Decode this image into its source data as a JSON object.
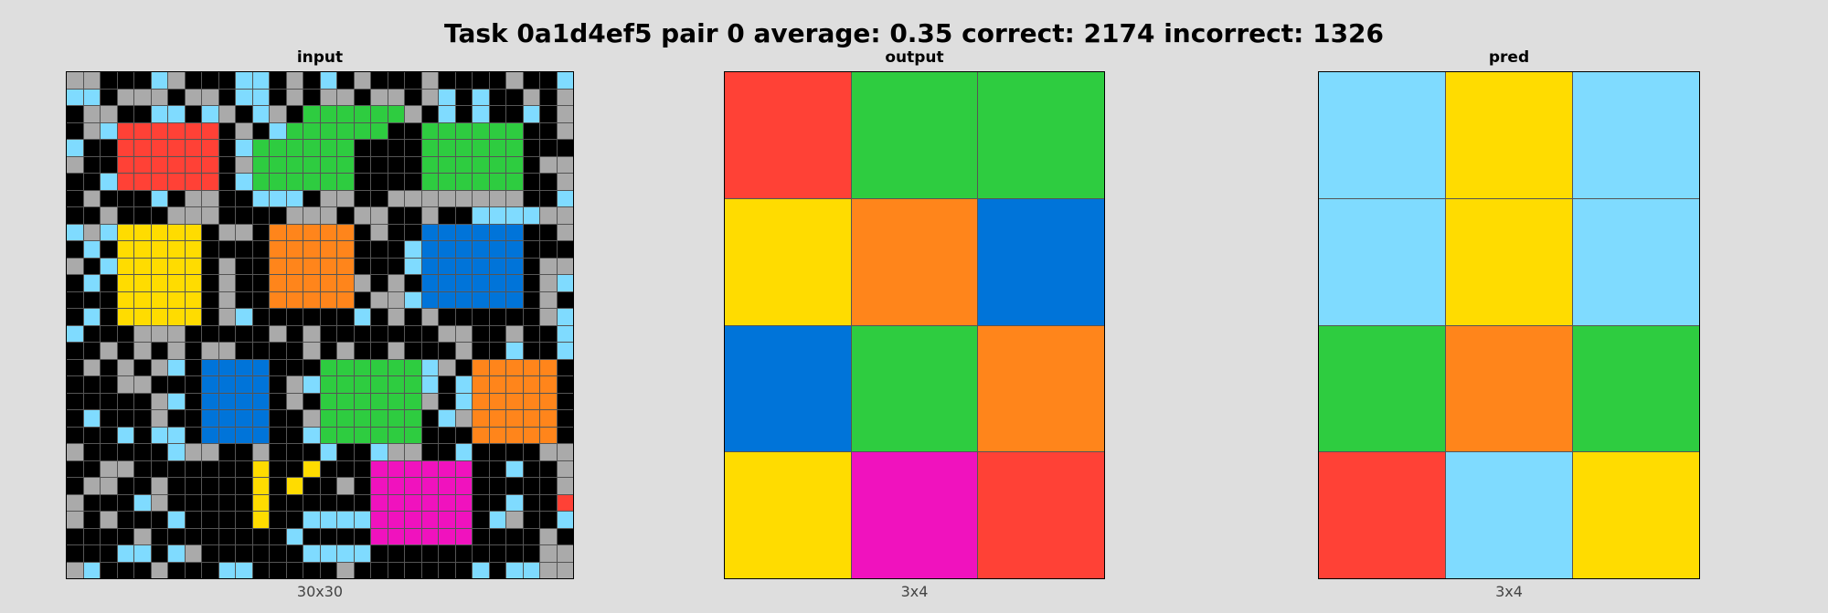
{
  "title": "Task 0a1d4ef5 pair 0 average: 0.35 correct: 2174 incorrect: 1326",
  "palette": {
    "0": "#000000",
    "1": "#0074d9",
    "2": "#ff4136",
    "3": "#2ecc40",
    "4": "#ffdc00",
    "5": "#aaaaaa",
    "6": "#f012be",
    "7": "#ff851b",
    "8": "#7fdbff",
    "9": "#870c25"
  },
  "panels": {
    "input": {
      "label": "input",
      "dims": "30x30",
      "cols": 30,
      "rows": [
        "550008500088050805000500005008",
        "880555055088050550550580800505",
        "055008808508503333335080800805",
        "058222222050833333300333333005",
        "800222222083333330000333333000",
        "500222222053333330000333333055",
        "008222222083333330000333333005",
        "050008055008880550055555555008",
        "005000555000055505500500888855",
        "858444440550777770500111111005",
        "080444440000777770008111111000",
        "508444440500777770008111111055",
        "080444440500777775050111111058",
        "000444440500777770558111111050",
        "080444440580000008050500000058",
        "800055500000505000000055005008",
        "005050505500005050050005008008",
        "050505801111000333333850777770",
        "000550001111058333333808777770",
        "000005801111050333333508777770",
        "080005001111005333333085777770",
        "000808801111008333333000777770",
        "500000855005000800855008000055",
        "005500000004004000666666008005",
        "055005000004040050666666000005",
        "500085000004000000666666008002",
        "505000800004008888666666085008",
        "000050000000080000666666000050",
        "000880850000008888000000000055",
        "580005000880000050000000808855"
      ]
    },
    "output": {
      "label": "output",
      "dims": "3x4",
      "cols": 3,
      "rows": [
        "233",
        "471",
        "137",
        "462"
      ]
    },
    "pred": {
      "label": "pred",
      "dims": "3x4",
      "cols": 3,
      "rows": [
        "848",
        "848",
        "373",
        "284"
      ]
    }
  }
}
